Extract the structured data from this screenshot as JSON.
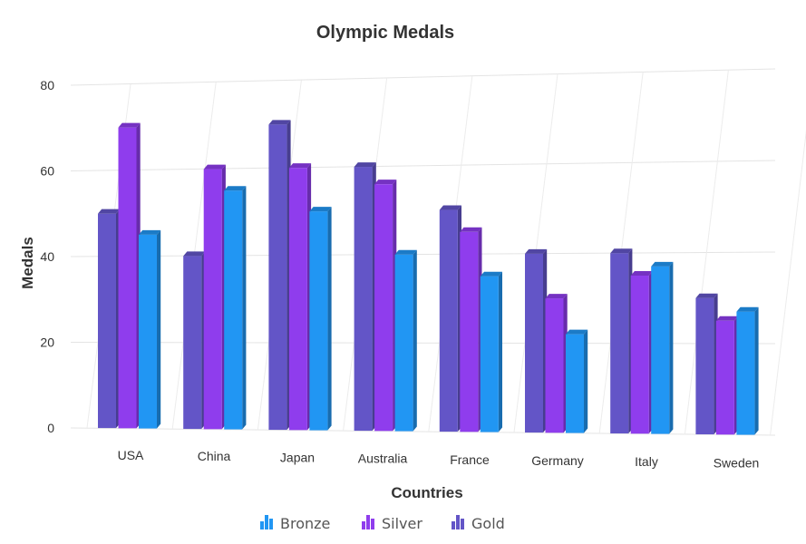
{
  "chart_data": {
    "type": "bar",
    "title": "Olympic Medals",
    "xlabel": "Countries",
    "ylabel": "Medals",
    "categories": [
      "USA",
      "China",
      "Japan",
      "Australia",
      "France",
      "Germany",
      "Italy",
      "Sweden"
    ],
    "yticks": [
      "0",
      "20",
      "40",
      "60",
      "80"
    ],
    "ylim": [
      0,
      80
    ],
    "grid": true,
    "legend_position": "bottom",
    "series": [
      {
        "name": "Gold",
        "color": "#6355C7",
        "values": [
          50,
          40,
          70,
          60,
          50,
          40,
          40,
          30
        ]
      },
      {
        "name": "Silver",
        "color": "#8F3DED",
        "values": [
          70,
          60,
          60,
          56,
          45,
          30,
          35,
          25
        ]
      },
      {
        "name": "Bronze",
        "color": "#2196F3",
        "values": [
          45,
          55,
          50,
          40,
          35,
          22,
          37,
          27
        ]
      }
    ],
    "legend": [
      {
        "name": "Bronze",
        "color": "#2196F3"
      },
      {
        "name": "Silver",
        "color": "#8F3DED"
      },
      {
        "name": "Gold",
        "color": "#6355C7"
      }
    ]
  }
}
